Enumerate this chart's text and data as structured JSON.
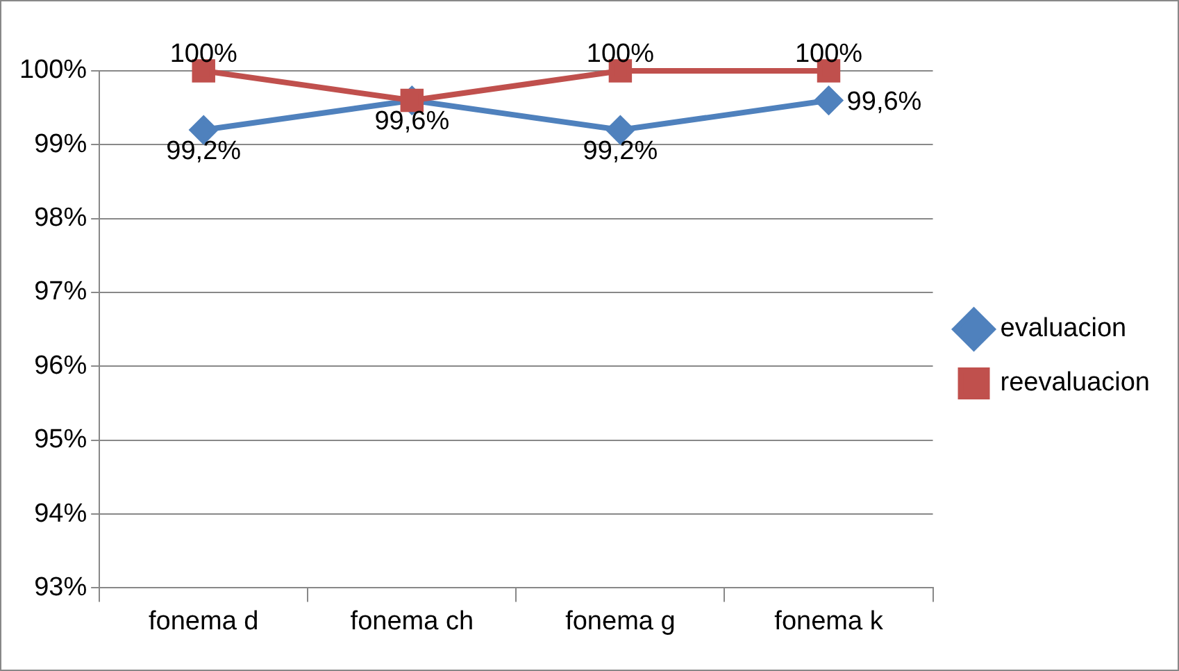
{
  "chart_data": {
    "type": "line",
    "categories": [
      "fonema d",
      "fonema ch",
      "fonema g",
      "fonema k"
    ],
    "series": [
      {
        "name": "evaluacion",
        "color": "#4f81bd",
        "marker": "diamond",
        "values": [
          99.2,
          99.6,
          99.2,
          99.6
        ],
        "value_labels": [
          "99,2%",
          "99,6%",
          "99,2%",
          "99,6%"
        ]
      },
      {
        "name": "reevaluacion",
        "color": "#c0504d",
        "marker": "square",
        "values": [
          100,
          99.6,
          100,
          100
        ],
        "value_labels": [
          "100%",
          null,
          "100%",
          "100%"
        ]
      }
    ],
    "ylim": [
      93,
      100
    ],
    "yticks": [
      {
        "value": 93,
        "label": "93%"
      },
      {
        "value": 94,
        "label": "94%"
      },
      {
        "value": 95,
        "label": "95%"
      },
      {
        "value": 96,
        "label": "96%"
      },
      {
        "value": 97,
        "label": "97%"
      },
      {
        "value": 98,
        "label": "98%"
      },
      {
        "value": 99,
        "label": "99%"
      },
      {
        "value": 100,
        "label": "100%"
      }
    ],
    "grid": "y",
    "legend": "right",
    "line_style": "solid"
  }
}
